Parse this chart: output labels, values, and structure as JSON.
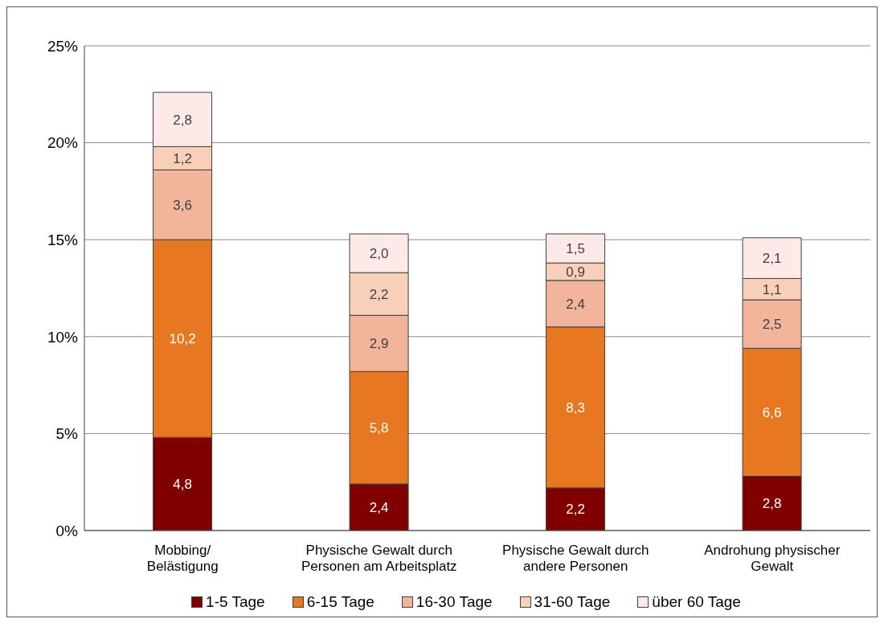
{
  "chart_data": {
    "type": "bar",
    "stacked": true,
    "categories": [
      "Mobbing/\nBelästigung",
      "Physische Gewalt durch\nPersonen am Arbeitsplatz",
      "Physische Gewalt durch\nandere Personen",
      "Androhung physischer\nGewalt"
    ],
    "series": [
      {
        "name": "1-5 Tage",
        "color": "#800000",
        "values": [
          4.8,
          2.4,
          2.2,
          2.8
        ],
        "value_labels": [
          "4,8",
          "2,4",
          "2,2",
          "2,8"
        ]
      },
      {
        "name": "6-15 Tage",
        "color": "#e87722",
        "values": [
          10.2,
          5.8,
          8.3,
          6.6
        ],
        "value_labels": [
          "10,2",
          "5,8",
          "8,3",
          "6,6"
        ]
      },
      {
        "name": "16-30 Tage",
        "color": "#f2b49a",
        "values": [
          3.6,
          2.9,
          2.4,
          2.5
        ],
        "value_labels": [
          "3,6",
          "2,9",
          "2,4",
          "2,5"
        ]
      },
      {
        "name": "31-60 Tage",
        "color": "#f8cfb8",
        "values": [
          1.2,
          2.2,
          0.9,
          1.1
        ],
        "value_labels": [
          "1,2",
          "2,2",
          "0,9",
          "1,1"
        ]
      },
      {
        "name": "über 60 Tage",
        "color": "#fde9e7",
        "values": [
          2.8,
          2.0,
          1.5,
          2.1
        ],
        "value_labels": [
          "2,8",
          "2,0",
          "1,5",
          "2,1"
        ]
      }
    ],
    "ylim": [
      0,
      25
    ],
    "yticks": [
      {
        "value": 0,
        "label": "0%"
      },
      {
        "value": 5,
        "label": "5%"
      },
      {
        "value": 10,
        "label": "10%"
      },
      {
        "value": 15,
        "label": "15%"
      },
      {
        "value": 20,
        "label": "20%"
      },
      {
        "value": 25,
        "label": "25%"
      }
    ],
    "grid": "y",
    "legend": "bottom"
  }
}
